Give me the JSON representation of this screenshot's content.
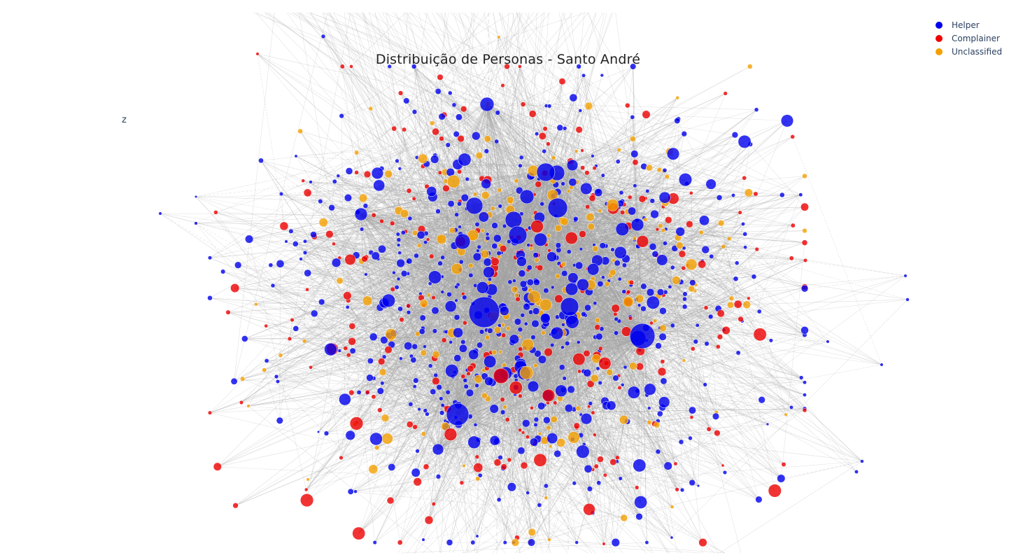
{
  "chart_data": {
    "type": "scatter",
    "title": "Distribuição de Personas - Santo André",
    "axis_label": "z",
    "legend_position": "top-right",
    "grid": false,
    "series": [
      {
        "name": "Helper",
        "color": "#0000ee"
      },
      {
        "name": "Complainer",
        "color": "#ee0000"
      },
      {
        "name": "Unclassified",
        "color": "#f5a000"
      }
    ],
    "edge_color": "#a0a0a0"
  }
}
